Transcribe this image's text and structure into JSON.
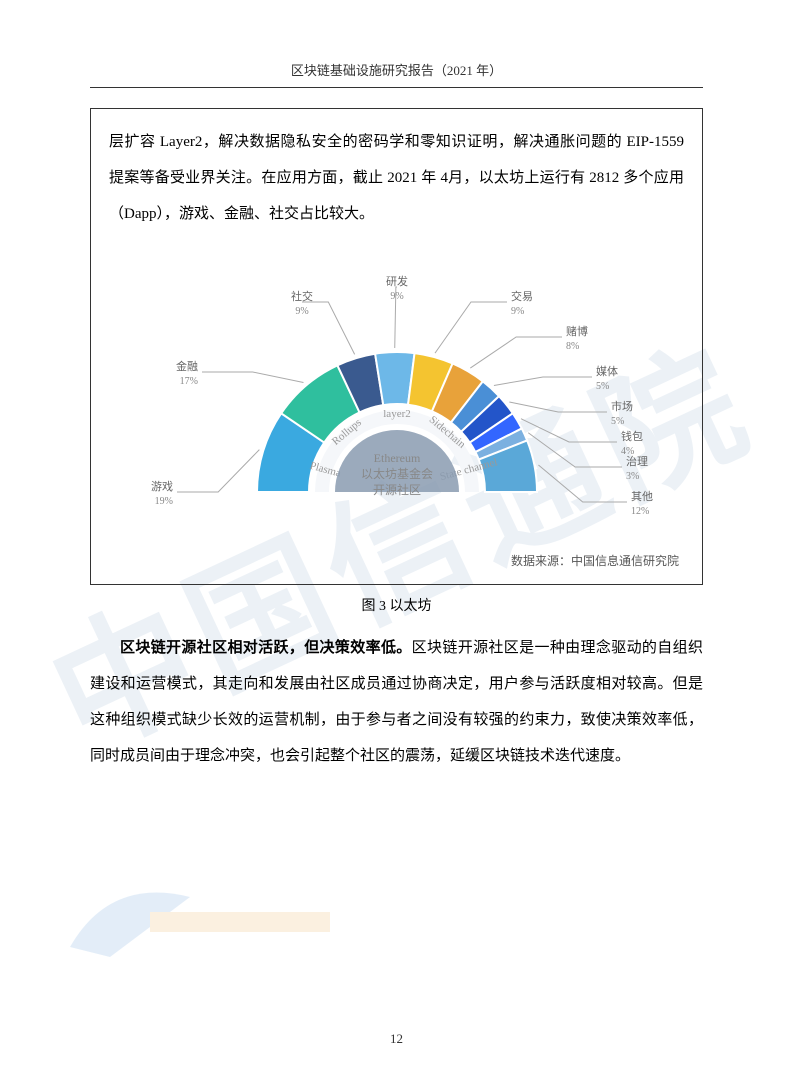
{
  "header": "区块链基础设施研究报告（2021 年）",
  "watermark_text": "中国信通院",
  "page_number": "12",
  "box_paragraph": "层扩容 Layer2，解决数据隐私安全的密码学和零知识证明，解决通胀问题的 EIP-1559 提案等备受业界关注。在应用方面，截止 2021 年 4月，以太坊上运行有 2812 多个应用（Dapp），游戏、金融、社交占比较大。",
  "chart": {
    "type": "semi-donut",
    "background_color": "#ffffff",
    "outer_radius": 140,
    "inner_radius": 88,
    "core_radius": 62,
    "center": {
      "label1": "Ethereum",
      "label2": "以太坊基金会",
      "label3": "开源社区"
    },
    "core_color": "#8a9bb0",
    "inner_ring_labels": [
      "Plasma",
      "Rollups",
      "layer2",
      "Sidechain",
      "State channel"
    ],
    "segments": [
      {
        "name": "游戏",
        "pct": 19,
        "color": "#3aa9e0"
      },
      {
        "name": "金融",
        "pct": 17,
        "color": "#2fbf9e"
      },
      {
        "name": "社交",
        "pct": 9,
        "color": "#3a5a8f"
      },
      {
        "name": "研发",
        "pct": 9,
        "color": "#6db8e8"
      },
      {
        "name": "交易",
        "pct": 9,
        "color": "#f4c430"
      },
      {
        "name": "赌博",
        "pct": 8,
        "color": "#e8a23a"
      },
      {
        "name": "媒体",
        "pct": 5,
        "color": "#4a8fd6"
      },
      {
        "name": "市场",
        "pct": 5,
        "color": "#2355c9"
      },
      {
        "name": "钱包",
        "pct": 4,
        "color": "#3366ff"
      },
      {
        "name": "治理",
        "pct": 3,
        "color": "#7bb0e0"
      },
      {
        "name": "其他",
        "pct": 12,
        "color": "#5aa8d8"
      }
    ],
    "label_font_size": 11,
    "label_color": "#666666",
    "leader_color": "#aaaaaa"
  },
  "data_source": "数据来源：中国信息通信研究院",
  "caption": "图 3 以太坊",
  "body_bold": "区块链开源社区相对活跃，但决策效率低。",
  "body_rest": "区块链开源社区是一种由理念驱动的自组织建设和运营模式，其走向和发展由社区成员通过协商决定，用户参与活跃度相对较高。但是这种组织模式缺少长效的运营机制，由于参与者之间没有较强的约束力，致使决策效率低，同时成员间由于理念冲突，也会引起整个社区的震荡，延缓区块链技术迭代速度。"
}
